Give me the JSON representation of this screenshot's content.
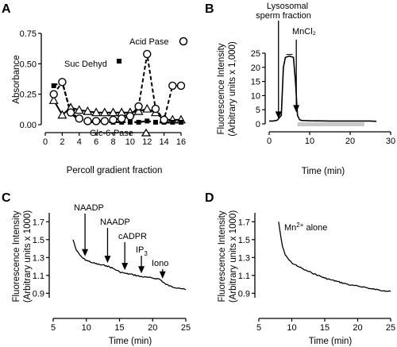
{
  "chart_data": [
    {
      "panel": "A",
      "type": "line",
      "xlabel": "Percoll gradient fraction",
      "ylabel": "Absorbance",
      "xlim": [
        0,
        16
      ],
      "ylim": [
        0,
        0.75
      ],
      "xticks": [
        "0",
        "2",
        "4",
        "6",
        "8",
        "10",
        "12",
        "14",
        "16"
      ],
      "yticks": [
        "0.00",
        "0.25",
        "0.50",
        "0.75"
      ],
      "x": [
        1,
        2,
        3,
        4,
        5,
        6,
        7,
        8,
        9,
        10,
        11,
        12,
        13,
        14,
        15,
        16
      ],
      "series": [
        {
          "name": "Acid Pase",
          "values": [
            0.25,
            0.35,
            0.1,
            0.05,
            0.03,
            0.03,
            0.03,
            0.04,
            0.05,
            0.07,
            0.15,
            0.58,
            0.13,
            0.04,
            0.32,
            0.32
          ]
        },
        {
          "name": "Suc Dehyd",
          "values": [
            0.32,
            0.35,
            0.09,
            0.04,
            0.02,
            0.02,
            0.02,
            0.02,
            0.02,
            0.02,
            0.02,
            0.03,
            0.02,
            0.02,
            0.02,
            0.02
          ]
        },
        {
          "name": "Glc-6-Pase",
          "values": [
            0.2,
            0.08,
            0.14,
            0.12,
            0.11,
            0.1,
            0.1,
            0.1,
            0.1,
            0.1,
            0.11,
            0.13,
            0.1,
            0.04,
            0.04,
            0.04
          ]
        }
      ],
      "annotations": [
        "Acid Pase",
        "Suc Dehyd",
        "Glc-6-Pase"
      ]
    },
    {
      "panel": "B",
      "type": "line",
      "xlabel": "Time (min)",
      "ylabel": "Fluorescence Intensity",
      "ylabel2": "(Arbitrary units x 1,000)",
      "xlim": [
        0,
        30
      ],
      "ylim": [
        0,
        25
      ],
      "xticks": [
        "0",
        "10",
        "20",
        "30"
      ],
      "yticks": [
        "0",
        "5",
        "10",
        "15",
        "20",
        "25"
      ],
      "x": [
        0,
        1,
        2,
        3,
        3.5,
        4,
        5,
        6,
        6.5,
        7,
        7.5,
        8,
        10,
        15,
        20,
        25,
        26.5
      ],
      "values": [
        1,
        1,
        1.3,
        3,
        20,
        23.5,
        24,
        23.5,
        15,
        3,
        1.5,
        1.2,
        1.1,
        1.0,
        1.0,
        1.0,
        0.9
      ],
      "annotations": [
        "Lysosomal",
        "sperm fraction",
        "MnCl₂"
      ],
      "arrows_at": [
        2.3,
        6.7
      ],
      "bar_range": [
        7,
        23.5
      ]
    },
    {
      "panel": "C",
      "type": "line",
      "xlabel": "Time (min)",
      "ylabel": "Fluorescence Intensity",
      "ylabel2": "(Arbitrary units x 1000)",
      "xlim": [
        5,
        25
      ],
      "ylim": [
        0.85,
        1.8
      ],
      "xticks": [
        "5",
        "10",
        "15",
        "20",
        "25"
      ],
      "yticks": [
        "0.9",
        "1.1",
        "1.3",
        "1.5",
        "1.7"
      ],
      "x": [
        8,
        8.5,
        9,
        9.5,
        10,
        11,
        12,
        13,
        14,
        15,
        16,
        17,
        18,
        19,
        20,
        21,
        22,
        23,
        24,
        25
      ],
      "values": [
        1.5,
        1.38,
        1.33,
        1.29,
        1.27,
        1.24,
        1.22,
        1.21,
        1.18,
        1.14,
        1.12,
        1.11,
        1.09,
        1.08,
        1.07,
        1.06,
        1.0,
        0.97,
        0.96,
        0.94
      ],
      "annotations": [
        "NAADP",
        "NAADP",
        "cADPR",
        "IP",
        "3",
        "Iono"
      ],
      "arrows_at": [
        9.8,
        13.2,
        15.8,
        18.3,
        21.5
      ]
    },
    {
      "panel": "D",
      "type": "line",
      "xlabel": "Time (min)",
      "ylabel": "Fluorescence Intensity",
      "ylabel2": "(Arbitrary units x 1000)",
      "xlim": [
        5,
        25
      ],
      "ylim": [
        0.85,
        1.8
      ],
      "xticks": [
        "5",
        "10",
        "15",
        "20",
        "25"
      ],
      "yticks": [
        "0.9",
        "1.1",
        "1.3",
        "1.5",
        "1.7"
      ],
      "x": [
        8,
        8.3,
        8.6,
        9,
        9.5,
        10,
        11,
        12,
        13,
        14,
        15,
        16,
        17,
        18,
        19,
        20,
        21,
        22,
        23,
        24,
        25
      ],
      "values": [
        1.7,
        1.55,
        1.42,
        1.33,
        1.28,
        1.24,
        1.2,
        1.16,
        1.13,
        1.1,
        1.07,
        1.05,
        1.03,
        1.01,
        0.99,
        0.98,
        0.97,
        0.95,
        0.94,
        0.93,
        0.92
      ],
      "annotations": [
        "Mn",
        "2+",
        " alone"
      ]
    }
  ]
}
